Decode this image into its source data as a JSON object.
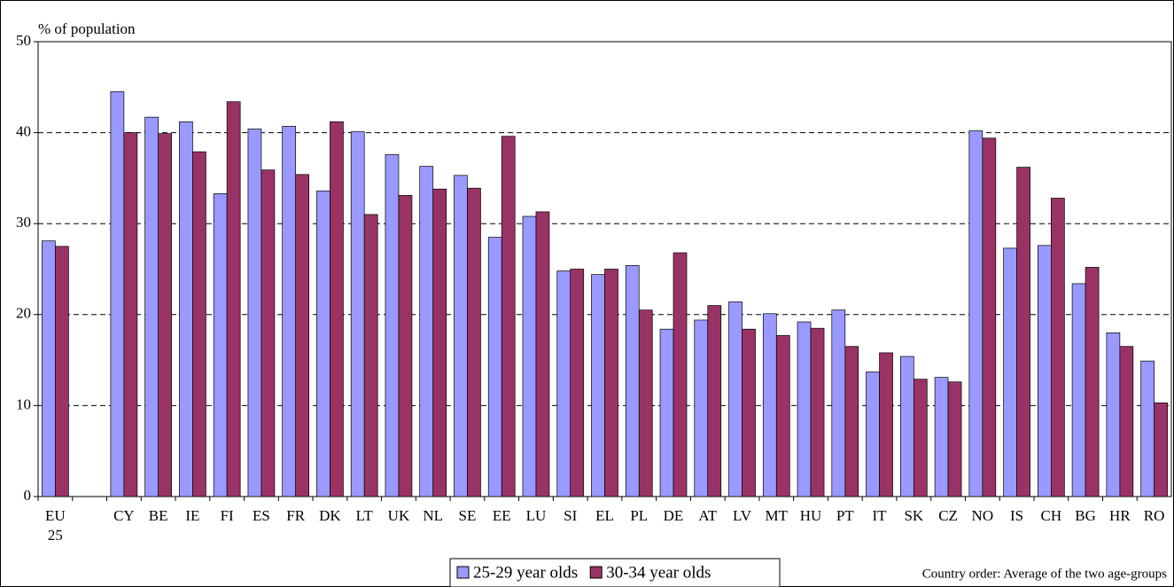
{
  "chart_data": {
    "type": "bar",
    "y_label": "% of population",
    "note": "Country order: Average of the two age-groups",
    "categories": [
      "EU 25",
      null,
      "CY",
      "BE",
      "IE",
      "FI",
      "ES",
      "FR",
      "DK",
      "LT",
      "UK",
      "NL",
      "SE",
      "EE",
      "LU",
      "SI",
      "EL",
      "PL",
      "DE",
      "AT",
      "LV",
      "MT",
      "HU",
      "PT",
      "IT",
      "SK",
      "CZ",
      "NO",
      "IS",
      "CH",
      "BG",
      "HR",
      "RO"
    ],
    "series": [
      {
        "name": "25-29 year olds",
        "color": "#9999ff",
        "values": [
          28.1,
          null,
          44.5,
          41.7,
          41.2,
          33.3,
          40.4,
          40.7,
          33.6,
          40.1,
          37.6,
          36.3,
          35.3,
          28.5,
          30.8,
          24.8,
          24.4,
          25.4,
          18.4,
          19.4,
          21.4,
          20.1,
          19.2,
          20.5,
          13.7,
          15.4,
          13.1,
          40.2,
          27.3,
          27.6,
          23.4,
          18.0,
          14.9
        ]
      },
      {
        "name": "30-34 year olds",
        "color": "#993366",
        "values": [
          27.5,
          null,
          40.0,
          39.9,
          37.9,
          43.4,
          35.9,
          35.4,
          41.2,
          31.0,
          33.1,
          33.8,
          33.9,
          39.6,
          31.3,
          25.0,
          25.0,
          20.5,
          26.8,
          21.0,
          18.4,
          17.7,
          18.5,
          16.5,
          15.8,
          12.9,
          12.6,
          39.4,
          36.2,
          32.8,
          25.2,
          16.5,
          10.3
        ]
      }
    ],
    "ylim": [
      0,
      50
    ],
    "yticks": [
      0,
      10,
      20,
      30,
      40,
      50
    ],
    "grid": true
  }
}
